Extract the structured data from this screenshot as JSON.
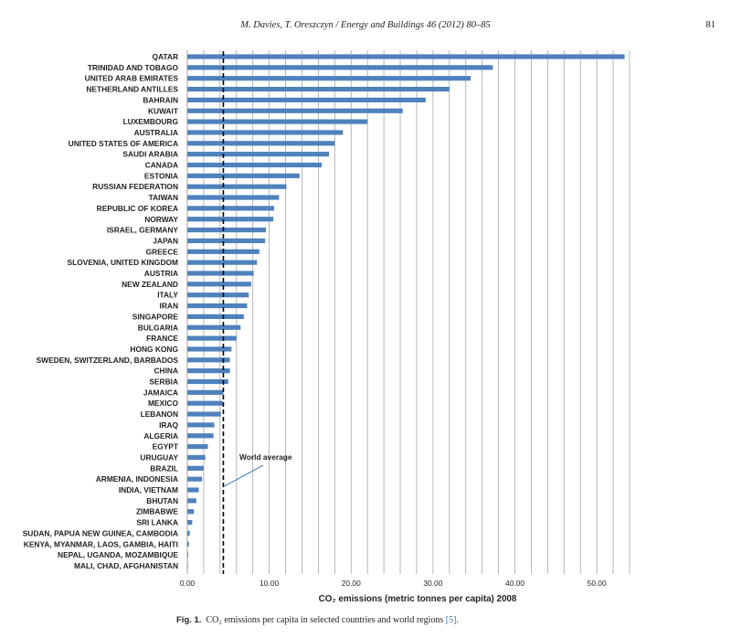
{
  "header": {
    "journal": "M. Davies, T. Oreszczyn / Energy and Buildings 46 (2012) 80–85",
    "page_number": "81"
  },
  "chart_data": {
    "type": "bar",
    "orientation": "horizontal",
    "categories": [
      "QATAR",
      "TRINIDAD AND TOBAGO",
      "UNITED ARAB EMIRATES",
      "NETHERLAND ANTILLES",
      "BAHRAIN",
      "KUWAIT",
      "LUXEMBOURG",
      "AUSTRALIA",
      "UNITED STATES OF AMERICA",
      "SAUDI ARABIA",
      "CANADA",
      "ESTONIA",
      "RUSSIAN FEDERATION",
      "TAIWAN",
      "REPUBLIC OF KOREA",
      "NORWAY",
      "ISRAEL, GERMANY",
      "JAPAN",
      "GREECE",
      "SLOVENIA, UNITED KINGDOM",
      "AUSTRIA",
      "NEW ZEALAND",
      "ITALY",
      "IRAN",
      "SINGAPORE",
      "BULGARIA",
      "FRANCE",
      "HONG KONG",
      "SWEDEN, SWITZERLAND, BARBADOS",
      "CHINA",
      "SERBIA",
      "JAMAICA",
      "MEXICO",
      "LEBANON",
      "IRAQ",
      "ALGERIA",
      "EGYPT",
      "URUGUAY",
      "BRAZIL",
      "ARMENIA, INDONESIA",
      "INDIA, VIETNAM",
      "BHUTAN",
      "ZIMBABWE",
      "SRI LANKA",
      "SUDAN, PAPUA NEW GUINEA, CAMBODIA",
      "KENYA, MYANMAR, LAOS, GAMBIA, HAITI",
      "NEPAL, UGANDA, MOZAMBIQUE",
      "MALI, CHAD, AFGHANISTAN"
    ],
    "values": [
      53.4,
      37.3,
      34.6,
      32.0,
      29.1,
      26.3,
      22.0,
      19.0,
      18.0,
      17.3,
      16.4,
      13.7,
      12.1,
      11.2,
      10.6,
      10.5,
      9.6,
      9.5,
      8.8,
      8.5,
      8.1,
      7.8,
      7.5,
      7.3,
      6.9,
      6.5,
      6.0,
      5.4,
      5.2,
      5.2,
      5.0,
      4.4,
      4.3,
      4.1,
      3.3,
      3.2,
      2.5,
      2.2,
      2.0,
      1.8,
      1.4,
      1.1,
      0.8,
      0.6,
      0.3,
      0.2,
      0.1,
      0.05
    ],
    "bar_color": "#4f81bd",
    "reference_line": {
      "value": 4.4,
      "label": "World average",
      "style": "dashed"
    },
    "xlim": [
      0,
      54
    ],
    "xticks": [
      0,
      10,
      20,
      30,
      40,
      50
    ],
    "xtick_labels": [
      "0.00",
      "10.00",
      "20.00",
      "30.00",
      "40.00",
      "50.00"
    ],
    "xlabel": "CO₂ emissions (metric tonnes per capita) 2008",
    "ylabel": "",
    "grid": "vertical",
    "grid_color": "#a6a6a6",
    "legend": "none"
  },
  "caption": {
    "label": "Fig. 1.",
    "text": "CO₂ emissions per capita in selected countries and world regions",
    "reference": "[5]",
    "end": "."
  }
}
